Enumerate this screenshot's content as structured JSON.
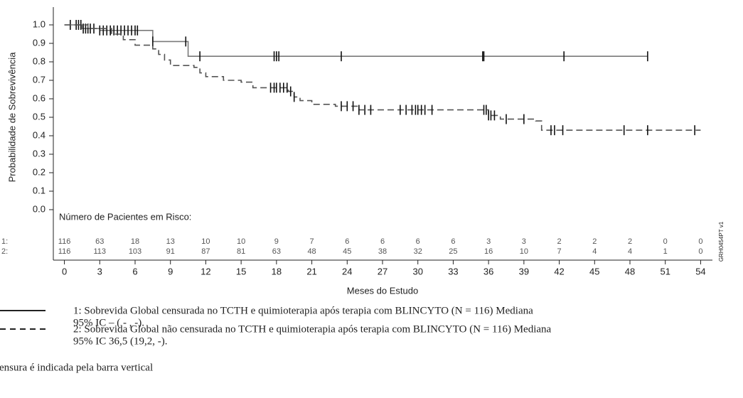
{
  "chart_data": {
    "type": "step",
    "ylabel": "Probabilidade de Sobrevivência",
    "xlabel": "Meses do Estudo",
    "xlim": [
      -1,
      55
    ],
    "ylim": [
      0,
      1
    ],
    "xticks": [
      0,
      3,
      6,
      9,
      12,
      15,
      18,
      21,
      24,
      27,
      30,
      33,
      36,
      39,
      42,
      45,
      48,
      51,
      54
    ],
    "yticks": [
      {
        "value": 0,
        "label": "0.0"
      },
      0.1,
      0.2,
      0.3,
      0.4,
      0.5,
      0.6,
      0.7,
      0.8,
      0.9,
      {
        "value": 1,
        "label": "1.0"
      }
    ],
    "series": [
      {
        "color": "#7a7a7a",
        "dash": false,
        "x": [
          0,
          1.5,
          3,
          7.5,
          10.5,
          49.5
        ],
        "values": [
          1.0,
          0.98,
          0.97,
          0.91,
          0.83,
          0.83
        ],
        "censored": [
          0.5,
          1,
          1.2,
          1.4,
          1.6,
          1.8,
          2,
          2.2,
          2.5,
          3,
          3.3,
          3.6,
          3.9,
          4.2,
          4.5,
          4.8,
          5.1,
          5.4,
          5.7,
          6,
          6.2,
          7.5,
          10.3,
          11.5,
          17.8,
          18,
          18.2,
          23.5,
          35.5,
          35.6,
          42.4,
          49.5
        ]
      },
      {
        "color": "#555555",
        "dash": true,
        "x": [
          0,
          2,
          4,
          5,
          6,
          7.5,
          8,
          8.5,
          9,
          11,
          11.5,
          12,
          13.5,
          15,
          16,
          19,
          19.5,
          20,
          21,
          23,
          25,
          36,
          37,
          40,
          40.5,
          54
        ],
        "values": [
          1.0,
          0.98,
          0.95,
          0.92,
          0.89,
          0.87,
          0.84,
          0.81,
          0.78,
          0.77,
          0.74,
          0.72,
          0.7,
          0.69,
          0.66,
          0.64,
          0.61,
          0.59,
          0.57,
          0.56,
          0.54,
          0.51,
          0.49,
          0.48,
          0.43,
          0.43
        ],
        "censored": [
          17.5,
          17.8,
          18,
          18.3,
          18.6,
          18.9,
          19.2,
          19.5,
          23.5,
          24,
          24.5,
          25,
          25.5,
          26,
          28.5,
          29,
          29.5,
          29.8,
          30,
          30.3,
          30.6,
          31.2,
          35.6,
          35.8,
          36,
          36.2,
          36.5,
          37.5,
          39,
          41.3,
          41.6,
          42.3,
          47.5,
          49.5,
          53.5
        ]
      }
    ],
    "at_risk": {
      "title": "Número de Pacientes em Risco:",
      "rows": [
        {
          "label": "1:",
          "values": [
            116,
            63,
            18,
            13,
            10,
            10,
            9,
            7,
            6,
            6,
            6,
            6,
            3,
            3,
            2,
            2,
            2,
            0,
            0
          ]
        },
        {
          "label": "2:",
          "values": [
            116,
            113,
            103,
            91,
            87,
            81,
            63,
            48,
            45,
            38,
            32,
            25,
            16,
            10,
            7,
            4,
            4,
            1,
            0
          ]
        }
      ]
    },
    "code": "GRH0454PT v1",
    "legend": [
      {
        "lines": [
          "1: Sobrevida Global censurada no TCTH e quimioterapia após terapia com BLINCYTO (N = 116) Mediana",
          "95% IC – ( - , -)."
        ]
      },
      {
        "lines": [
          "2: Sobrevida Global não censurada no TCTH e quimioterapia após terapia com BLINCYTO (N = 116) Mediana",
          "95% IC 36,5 (19,2, -)."
        ]
      }
    ],
    "note": "ensura é indicada pela barra vertical"
  }
}
